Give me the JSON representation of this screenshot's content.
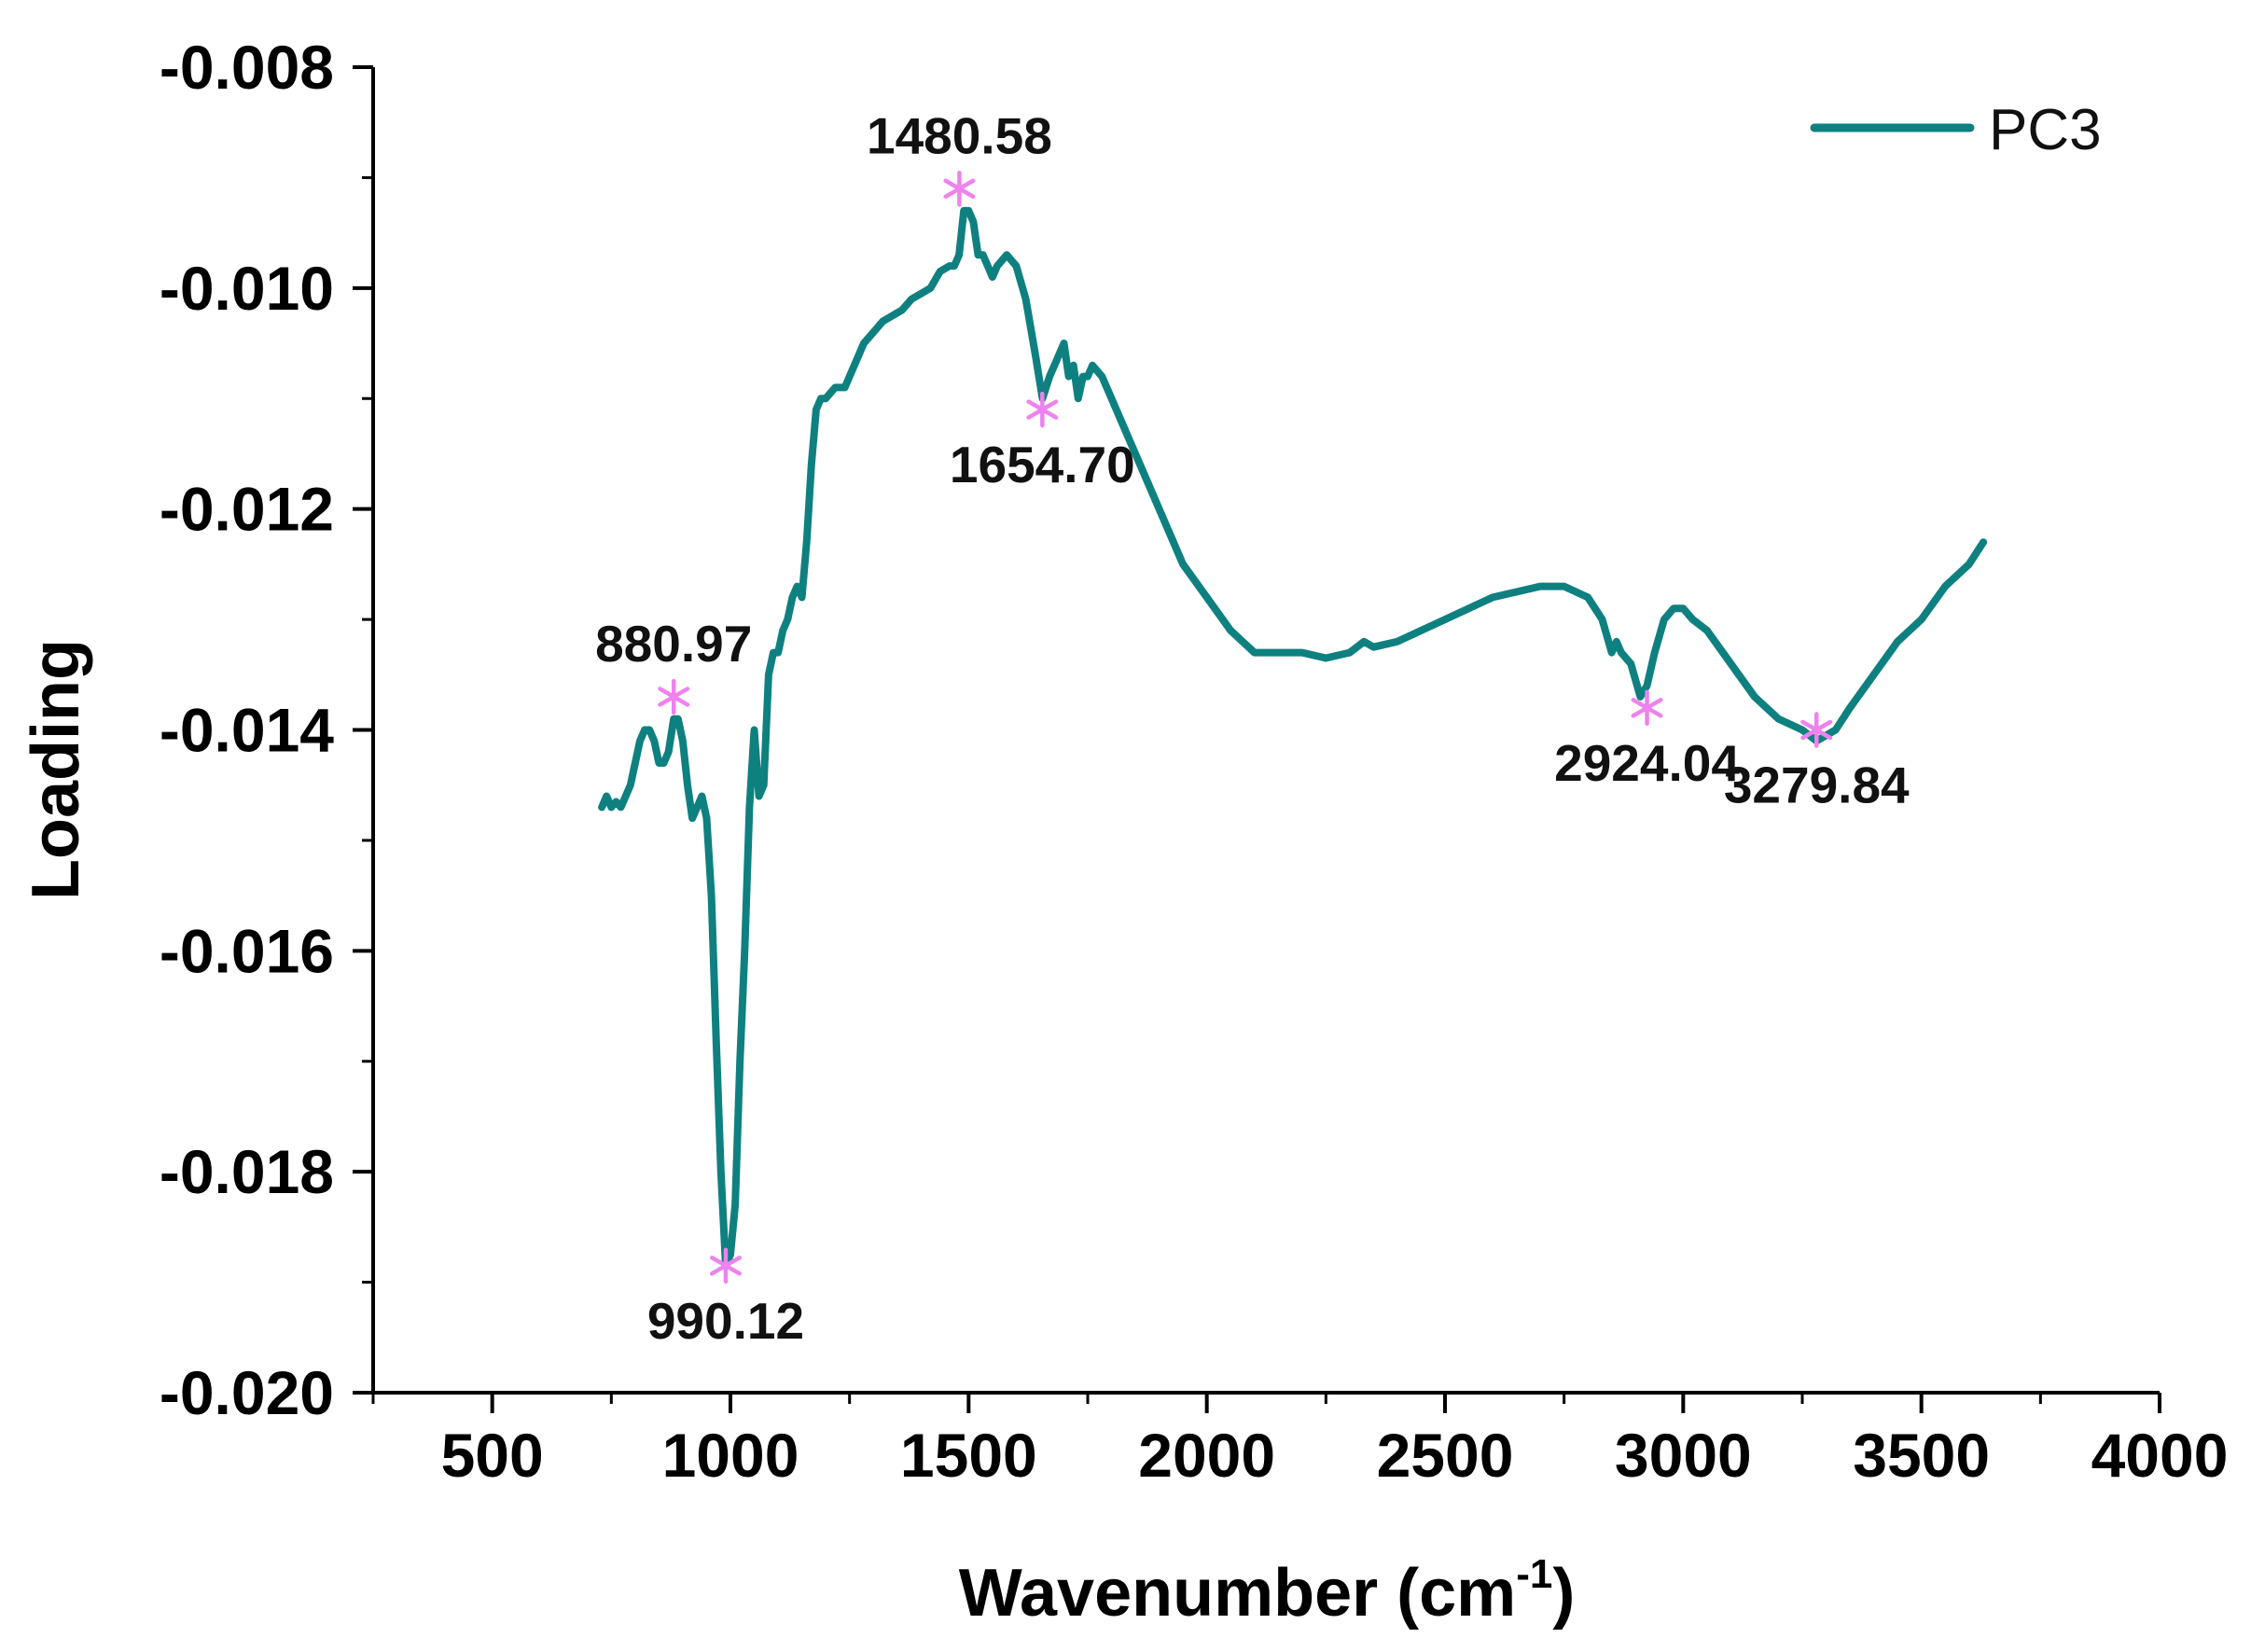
{
  "chart_data": {
    "type": "line",
    "xlabel": "Wavenumber (cm",
    "xlabel_sup": "-1",
    "xlabel_suffix": ")",
    "ylabel": "Loading",
    "xlim": [
      250,
      4000
    ],
    "ylim": [
      -0.02,
      -0.008
    ],
    "x_ticks": [
      500,
      1000,
      1500,
      2000,
      2500,
      3000,
      3500,
      4000
    ],
    "x_tick_labels": [
      "500",
      "1000",
      "1500",
      "2000",
      "2500",
      "3000",
      "3500",
      "4000"
    ],
    "y_ticks": [
      -0.008,
      -0.01,
      -0.012,
      -0.014,
      -0.016,
      -0.018,
      -0.02
    ],
    "y_tick_labels": [
      "-0.008",
      "-0.010",
      "-0.012",
      "-0.014",
      "-0.016",
      "-0.018",
      "-0.020"
    ],
    "grid": false,
    "legend_position": "top-right",
    "series": [
      {
        "name": "PC3",
        "color": "#0f8080",
        "x": [
          730,
          740,
          750,
          760,
          770,
          780,
          790,
          800,
          810,
          820,
          830,
          840,
          850,
          860,
          870,
          881,
          890,
          900,
          910,
          920,
          930,
          940,
          950,
          960,
          970,
          980,
          990,
          1000,
          1010,
          1020,
          1030,
          1040,
          1050,
          1060,
          1070,
          1080,
          1090,
          1100,
          1110,
          1120,
          1130,
          1140,
          1150,
          1160,
          1170,
          1180,
          1190,
          1200,
          1220,
          1240,
          1260,
          1280,
          1300,
          1320,
          1340,
          1360,
          1380,
          1400,
          1420,
          1440,
          1460,
          1470,
          1480,
          1490,
          1500,
          1510,
          1520,
          1530,
          1540,
          1550,
          1560,
          1580,
          1600,
          1620,
          1640,
          1655,
          1670,
          1690,
          1700,
          1710,
          1720,
          1730,
          1740,
          1750,
          1760,
          1780,
          1800,
          1850,
          1900,
          1950,
          2000,
          2050,
          2100,
          2150,
          2200,
          2250,
          2300,
          2330,
          2350,
          2400,
          2450,
          2500,
          2550,
          2600,
          2650,
          2700,
          2750,
          2800,
          2830,
          2850,
          2860,
          2870,
          2890,
          2910,
          2924,
          2940,
          2960,
          2980,
          3000,
          3020,
          3050,
          3100,
          3150,
          3200,
          3250,
          3280,
          3320,
          3350,
          3400,
          3450,
          3500,
          3550,
          3600,
          3630
        ],
        "y": [
          -0.0147,
          -0.0146,
          -0.0147,
          -0.01465,
          -0.0147,
          -0.0146,
          -0.0145,
          -0.0143,
          -0.0141,
          -0.014,
          -0.014,
          -0.0141,
          -0.0143,
          -0.0143,
          -0.0142,
          -0.0139,
          -0.0139,
          -0.0141,
          -0.0145,
          -0.0148,
          -0.0147,
          -0.0146,
          -0.0148,
          -0.0155,
          -0.0168,
          -0.018,
          -0.01885,
          -0.01875,
          -0.0183,
          -0.017,
          -0.016,
          -0.0147,
          -0.014,
          -0.0146,
          -0.0145,
          -0.0135,
          -0.0133,
          -0.0133,
          -0.0131,
          -0.013,
          -0.0128,
          -0.0127,
          -0.0128,
          -0.0123,
          -0.0116,
          -0.0111,
          -0.011,
          -0.011,
          -0.0109,
          -0.0109,
          -0.0107,
          -0.0105,
          -0.0104,
          -0.0103,
          -0.01025,
          -0.0102,
          -0.0101,
          -0.01005,
          -0.01,
          -0.00985,
          -0.0098,
          -0.0098,
          -0.0097,
          -0.0093,
          -0.0093,
          -0.0094,
          -0.0097,
          -0.0097,
          -0.0098,
          -0.0099,
          -0.0098,
          -0.0097,
          -0.0098,
          -0.0101,
          -0.0106,
          -0.011,
          -0.0108,
          -0.0106,
          -0.0105,
          -0.0108,
          -0.0107,
          -0.011,
          -0.0108,
          -0.0108,
          -0.0107,
          -0.0108,
          -0.011,
          -0.0115,
          -0.012,
          -0.0125,
          -0.0128,
          -0.0131,
          -0.0133,
          -0.0133,
          -0.0133,
          -0.01335,
          -0.0133,
          -0.0132,
          -0.01325,
          -0.0132,
          -0.0131,
          -0.013,
          -0.0129,
          -0.0128,
          -0.01275,
          -0.0127,
          -0.0127,
          -0.0128,
          -0.013,
          -0.0133,
          -0.0132,
          -0.0133,
          -0.0134,
          -0.0137,
          -0.0136,
          -0.0133,
          -0.013,
          -0.0129,
          -0.0129,
          -0.013,
          -0.0131,
          -0.0134,
          -0.0137,
          -0.0139,
          -0.014,
          -0.0141,
          -0.014,
          -0.0138,
          -0.0135,
          -0.0132,
          -0.013,
          -0.0127,
          -0.0125,
          -0.0123
        ]
      }
    ],
    "annotations": [
      {
        "text": "880.97",
        "x": 880.97,
        "y": -0.0137,
        "label_pos": "above"
      },
      {
        "text": "990.12",
        "x": 990.12,
        "y": -0.01885,
        "label_pos": "below"
      },
      {
        "text": "1480.58",
        "x": 1480.58,
        "y": -0.0091,
        "label_pos": "above"
      },
      {
        "text": "1654.70",
        "x": 1654.7,
        "y": -0.0111,
        "label_pos": "below"
      },
      {
        "text": "2924.04",
        "x": 2924.04,
        "y": -0.0138,
        "label_pos": "below"
      },
      {
        "text": "3279.84",
        "x": 3279.84,
        "y": -0.014,
        "label_pos": "below"
      }
    ],
    "marker_color": "#ee82ee"
  }
}
